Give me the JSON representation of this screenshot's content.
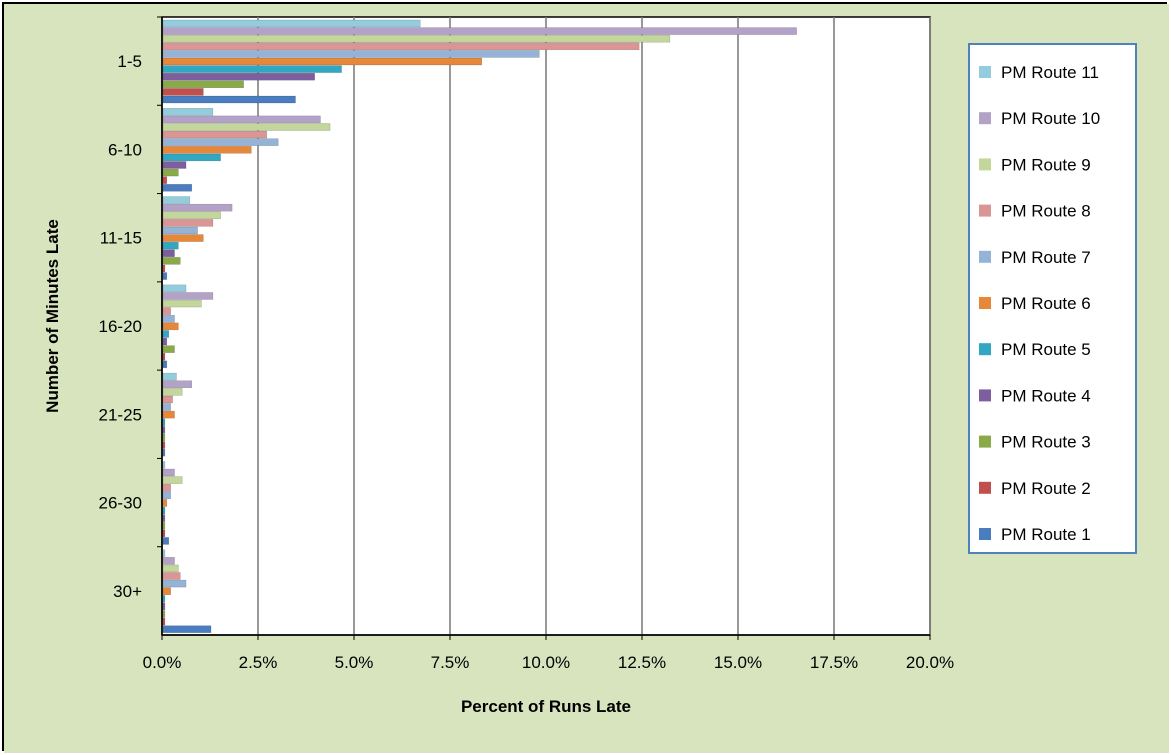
{
  "chart_data": {
    "type": "bar",
    "orientation": "horizontal",
    "categories": [
      "1-5",
      "6-10",
      "11-15",
      "16-20",
      "21-25",
      "26-30",
      "30+"
    ],
    "xlabel": "Percent of Runs Late",
    "ylabel": "Number of Minutes Late",
    "xlim": [
      0,
      20
    ],
    "xticks": [
      "0.0%",
      "2.5%",
      "5.0%",
      "7.5%",
      "10.0%",
      "12.5%",
      "15.0%",
      "17.5%",
      "20.0%"
    ],
    "grid": "vertical",
    "legend_position": "right",
    "series": [
      {
        "name": "PM Route 11",
        "color": "#93cddd",
        "values": [
          6.7,
          1.3,
          0.7,
          0.6,
          0.35,
          0.05,
          0.05
        ]
      },
      {
        "name": "PM Route 10",
        "color": "#b3a2c7",
        "values": [
          16.5,
          4.1,
          1.8,
          1.3,
          0.75,
          0.3,
          0.3
        ]
      },
      {
        "name": "PM Route 9",
        "color": "#c3d69b",
        "values": [
          13.2,
          4.35,
          1.5,
          1.0,
          0.5,
          0.5,
          0.4
        ]
      },
      {
        "name": "PM Route 8",
        "color": "#d99694",
        "values": [
          12.4,
          2.7,
          1.3,
          0.2,
          0.25,
          0.2,
          0.45
        ]
      },
      {
        "name": "PM Route 7",
        "color": "#95b3d7",
        "values": [
          9.8,
          3.0,
          0.9,
          0.3,
          0.2,
          0.2,
          0.6
        ]
      },
      {
        "name": "PM Route 6",
        "color": "#e6873a",
        "values": [
          8.3,
          2.3,
          1.05,
          0.4,
          0.3,
          0.1,
          0.2
        ]
      },
      {
        "name": "PM Route 5",
        "color": "#31a7c1",
        "values": [
          4.65,
          1.5,
          0.4,
          0.15,
          0.05,
          0.05,
          0.05
        ]
      },
      {
        "name": "PM Route 4",
        "color": "#7d5fa0",
        "values": [
          3.95,
          0.6,
          0.3,
          0.1,
          0.05,
          0.05,
          0.05
        ]
      },
      {
        "name": "PM Route 3",
        "color": "#8aaa4a",
        "values": [
          2.1,
          0.4,
          0.45,
          0.3,
          0.05,
          0.05,
          0.05
        ]
      },
      {
        "name": "PM Route 2",
        "color": "#c0504d",
        "values": [
          1.05,
          0.1,
          0.05,
          0.05,
          0.05,
          0.05,
          0.05
        ]
      },
      {
        "name": "PM Route 1",
        "color": "#4a7dbf",
        "values": [
          3.45,
          0.75,
          0.1,
          0.1,
          0.05,
          0.15,
          1.25
        ]
      }
    ]
  },
  "style": {
    "background": "#d7e4bd",
    "plot_background": "#ffffff",
    "gridline_color": "#7f7f7f",
    "legend_border": "#4f81bd"
  }
}
